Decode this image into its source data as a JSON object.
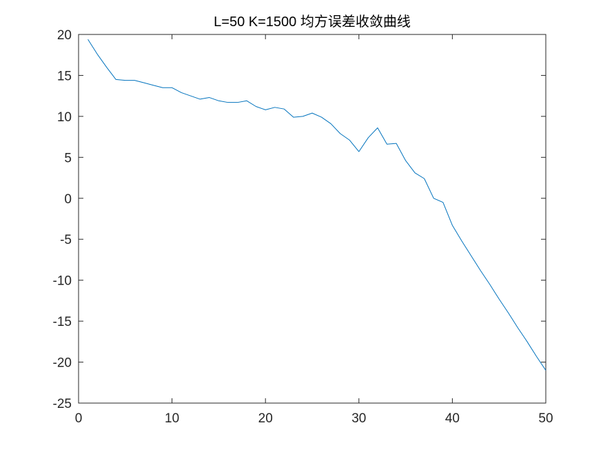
{
  "chart_data": {
    "type": "line",
    "title": "L=50 K=1500 均方误差收敛曲线",
    "xlabel": "",
    "ylabel": "",
    "xlim": [
      0,
      50
    ],
    "ylim": [
      -25,
      20
    ],
    "xticks": [
      0,
      10,
      20,
      30,
      40,
      50
    ],
    "yticks": [
      -25,
      -20,
      -15,
      -10,
      -5,
      0,
      5,
      10,
      15,
      20
    ],
    "grid": false,
    "legend": "none",
    "series": [
      {
        "color": "#0072BD",
        "x": [
          1,
          2,
          3,
          4,
          5,
          6,
          7,
          8,
          9,
          10,
          11,
          12,
          13,
          14,
          15,
          16,
          17,
          18,
          19,
          20,
          21,
          22,
          23,
          24,
          25,
          26,
          27,
          28,
          29,
          30,
          31,
          32,
          33,
          34,
          35,
          36,
          37,
          38,
          39,
          40,
          41,
          42,
          43,
          44,
          45,
          46,
          47,
          48,
          49,
          50
        ],
        "y": [
          19.4,
          17.6,
          16.0,
          14.5,
          14.4,
          14.4,
          14.1,
          13.8,
          13.5,
          13.5,
          12.9,
          12.5,
          12.1,
          12.3,
          11.9,
          11.7,
          11.7,
          11.9,
          11.2,
          10.8,
          11.1,
          10.9,
          9.9,
          10.0,
          10.4,
          9.9,
          9.1,
          7.9,
          7.1,
          5.7,
          7.4,
          8.6,
          6.6,
          6.7,
          4.6,
          3.1,
          2.4,
          0.0,
          -0.5,
          -3.3,
          -5.2,
          -7.0,
          -8.8,
          -10.5,
          -12.3,
          -14.0,
          -15.8,
          -17.5,
          -19.3,
          -21.0
        ]
      }
    ]
  }
}
